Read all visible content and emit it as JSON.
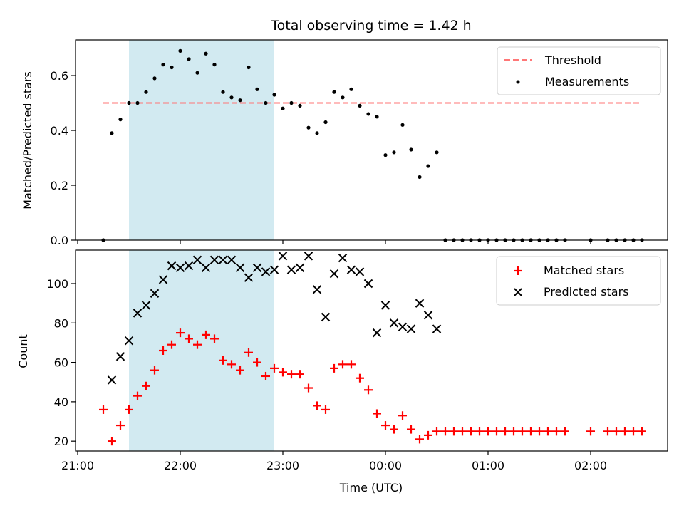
{
  "chart_data": [
    {
      "type": "scatter",
      "title": "Total observing time = 1.42 h",
      "xlabel": "",
      "ylabel": "Matched/Predicted stars",
      "ylim": [
        0,
        0.73
      ],
      "yticks": [
        "0.0",
        "0.2",
        "0.4",
        "0.6"
      ],
      "legend": {
        "placement": "top-right",
        "entries": [
          "Threshold",
          "Measurements"
        ]
      },
      "threshold": {
        "name": "Threshold",
        "y": 0.5,
        "x_range": [
          "21:15",
          "02:30"
        ],
        "color": "#ff7777",
        "style": "dashed"
      },
      "shaded_interval": {
        "x_range": [
          "21:30",
          "22:55"
        ],
        "color": "#add8e6"
      },
      "series": [
        {
          "name": "Measurements",
          "color": "#000000",
          "x": [
            "21:15",
            "21:20",
            "21:25",
            "21:30",
            "21:35",
            "21:40",
            "21:45",
            "21:50",
            "21:55",
            "22:00",
            "22:05",
            "22:10",
            "22:15",
            "22:20",
            "22:25",
            "22:30",
            "22:35",
            "22:40",
            "22:45",
            "22:50",
            "22:55",
            "23:00",
            "23:05",
            "23:10",
            "23:15",
            "23:20",
            "23:25",
            "23:30",
            "23:35",
            "23:40",
            "23:45",
            "23:50",
            "23:55",
            "00:00",
            "00:05",
            "00:10",
            "00:15",
            "00:20",
            "00:25",
            "00:30",
            "00:35",
            "00:40",
            "00:45",
            "00:50",
            "00:55",
            "01:00",
            "01:05",
            "01:10",
            "01:15",
            "01:20",
            "01:25",
            "01:30",
            "01:35",
            "01:40",
            "01:45",
            "02:00",
            "02:10",
            "02:15",
            "02:20",
            "02:25",
            "02:30"
          ],
          "y": [
            0.0,
            0.39,
            0.44,
            0.5,
            0.5,
            0.54,
            0.59,
            0.64,
            0.63,
            0.69,
            0.66,
            0.61,
            0.68,
            0.64,
            0.54,
            0.52,
            0.51,
            0.63,
            0.55,
            0.5,
            0.53,
            0.48,
            0.5,
            0.49,
            0.41,
            0.39,
            0.43,
            0.54,
            0.52,
            0.55,
            0.49,
            0.46,
            0.45,
            0.31,
            0.32,
            0.42,
            0.33,
            0.23,
            0.27,
            0.32,
            0.0,
            0.0,
            0.0,
            0.0,
            0.0,
            0.0,
            0.0,
            0.0,
            0.0,
            0.0,
            0.0,
            0.0,
            0.0,
            0.0,
            0.0,
            0.0,
            0.0,
            0.0,
            0.0,
            0.0,
            0.0
          ]
        }
      ]
    },
    {
      "type": "scatter",
      "title": "",
      "xlabel": "Time (UTC)",
      "ylabel": "Count",
      "ylim": [
        15,
        117
      ],
      "yticks": [
        "20",
        "40",
        "60",
        "80",
        "100"
      ],
      "xticks": [
        "21:00",
        "22:00",
        "23:00",
        "00:00",
        "01:00",
        "02:00"
      ],
      "legend": {
        "placement": "top-right",
        "entries": [
          "Matched stars",
          "Predicted stars"
        ]
      },
      "shaded_interval": {
        "x_range": [
          "21:30",
          "22:55"
        ],
        "color": "#add8e6"
      },
      "series": [
        {
          "name": "Matched stars",
          "marker": "plus",
          "color": "#ff0000",
          "x": [
            "21:15",
            "21:20",
            "21:25",
            "21:30",
            "21:35",
            "21:40",
            "21:45",
            "21:50",
            "21:55",
            "22:00",
            "22:05",
            "22:10",
            "22:15",
            "22:20",
            "22:25",
            "22:30",
            "22:35",
            "22:40",
            "22:45",
            "22:50",
            "22:55",
            "23:00",
            "23:05",
            "23:10",
            "23:15",
            "23:20",
            "23:25",
            "23:30",
            "23:35",
            "23:40",
            "23:45",
            "23:50",
            "23:55",
            "00:00",
            "00:05",
            "00:10",
            "00:15",
            "00:20",
            "00:25",
            "00:30",
            "00:35",
            "00:40",
            "00:45",
            "00:50",
            "00:55",
            "01:00",
            "01:05",
            "01:10",
            "01:15",
            "01:20",
            "01:25",
            "01:30",
            "01:35",
            "01:40",
            "01:45",
            "02:00",
            "02:10",
            "02:15",
            "02:20",
            "02:25",
            "02:30"
          ],
          "y": [
            36,
            20,
            28,
            36,
            43,
            48,
            56,
            66,
            69,
            75,
            72,
            69,
            74,
            72,
            61,
            59,
            56,
            65,
            60,
            53,
            57,
            55,
            54,
            54,
            47,
            38,
            36,
            57,
            59,
            59,
            52,
            46,
            34,
            28,
            26,
            33,
            26,
            21,
            23,
            25,
            25,
            25,
            25,
            25,
            25,
            25,
            25,
            25,
            25,
            25,
            25,
            25,
            25,
            25,
            25,
            25,
            25,
            25,
            25,
            25,
            25
          ]
        },
        {
          "name": "Predicted stars",
          "marker": "x",
          "color": "#000000",
          "x": [
            "21:20",
            "21:25",
            "21:30",
            "21:35",
            "21:40",
            "21:45",
            "21:50",
            "21:55",
            "22:00",
            "22:05",
            "22:10",
            "22:15",
            "22:20",
            "22:25",
            "22:30",
            "22:35",
            "22:40",
            "22:45",
            "22:50",
            "22:55",
            "23:00",
            "23:05",
            "23:10",
            "23:15",
            "23:20",
            "23:25",
            "23:30",
            "23:35",
            "23:40",
            "23:45",
            "23:50",
            "23:55",
            "00:00",
            "00:05",
            "00:10",
            "00:15",
            "00:20",
            "00:25",
            "00:30"
          ],
          "y": [
            51,
            63,
            71,
            85,
            89,
            95,
            102,
            109,
            108,
            109,
            112,
            108,
            112,
            112,
            112,
            108,
            103,
            108,
            106,
            107,
            114,
            107,
            108,
            114,
            97,
            83,
            105,
            113,
            107,
            106,
            100,
            75,
            89,
            80,
            78,
            77,
            90,
            84,
            77
          ]
        }
      ]
    }
  ]
}
